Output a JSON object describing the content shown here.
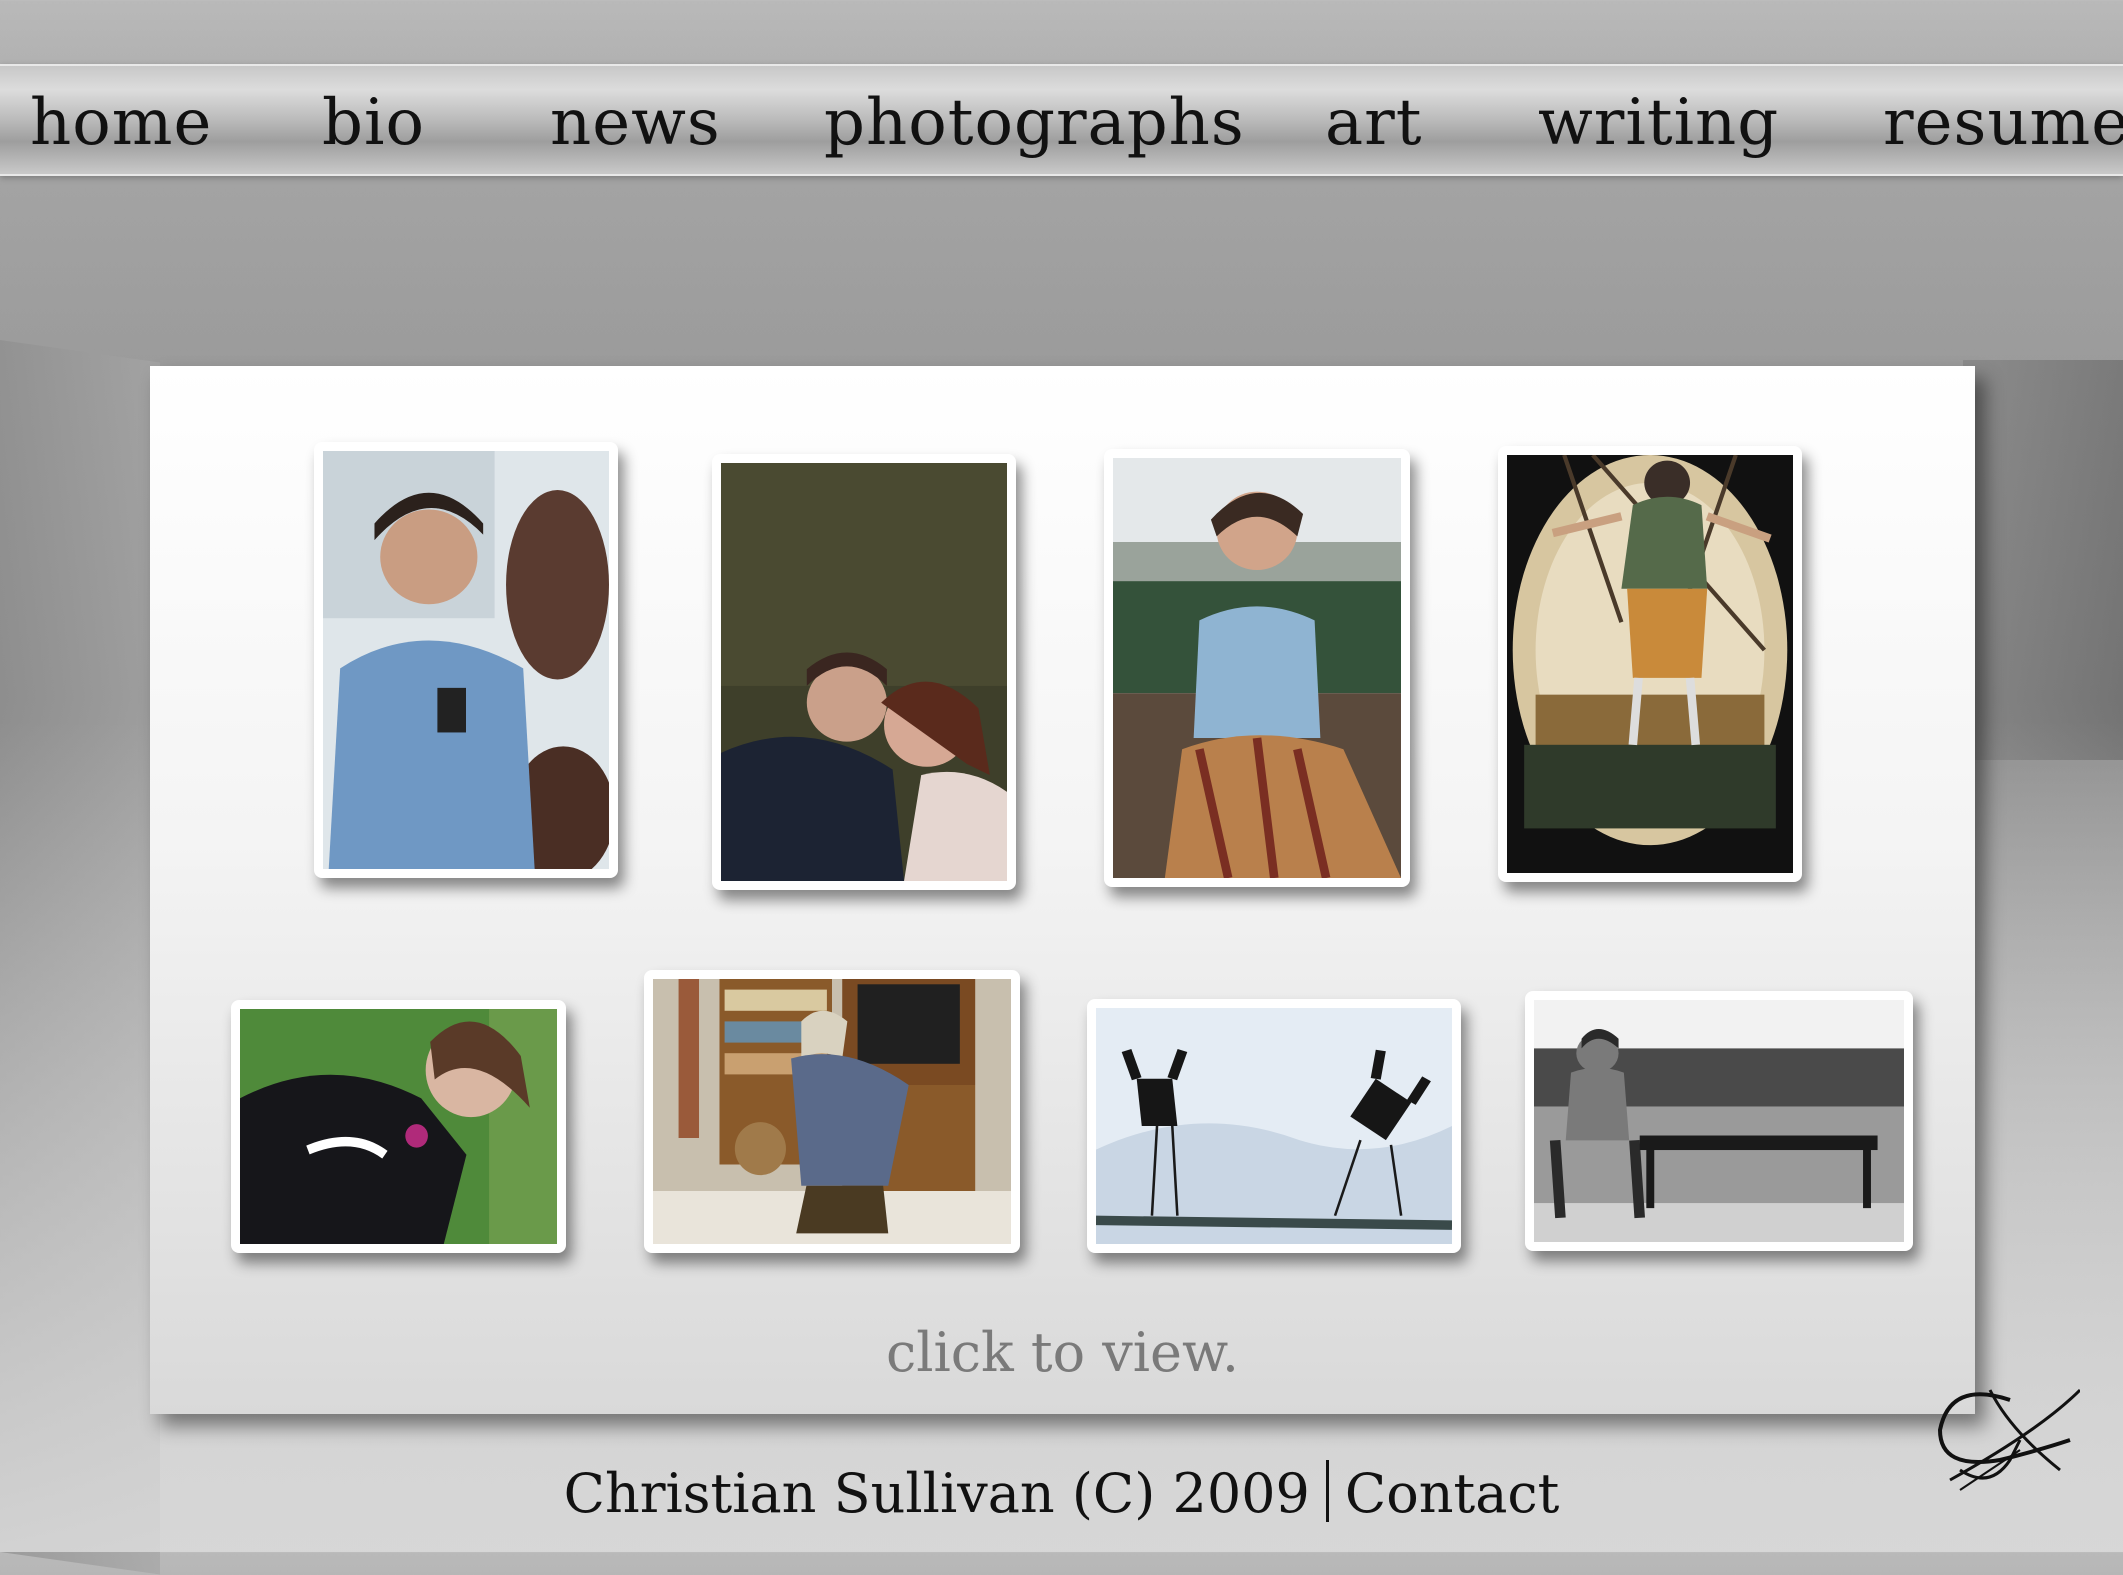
{
  "nav": {
    "items": [
      {
        "label": "home"
      },
      {
        "label": "bio"
      },
      {
        "label": "news"
      },
      {
        "label": "photographs"
      },
      {
        "label": "art"
      },
      {
        "label": "writing"
      },
      {
        "label": "resume"
      }
    ]
  },
  "gallery": {
    "caption": "click to view."
  },
  "footer": {
    "copyright": "Christian Sullivan (C) 2009",
    "contact_label": "Contact"
  },
  "colors": {
    "panel": "#ffffff",
    "nav_text": "#111111",
    "caption": "#7a7a7a"
  }
}
